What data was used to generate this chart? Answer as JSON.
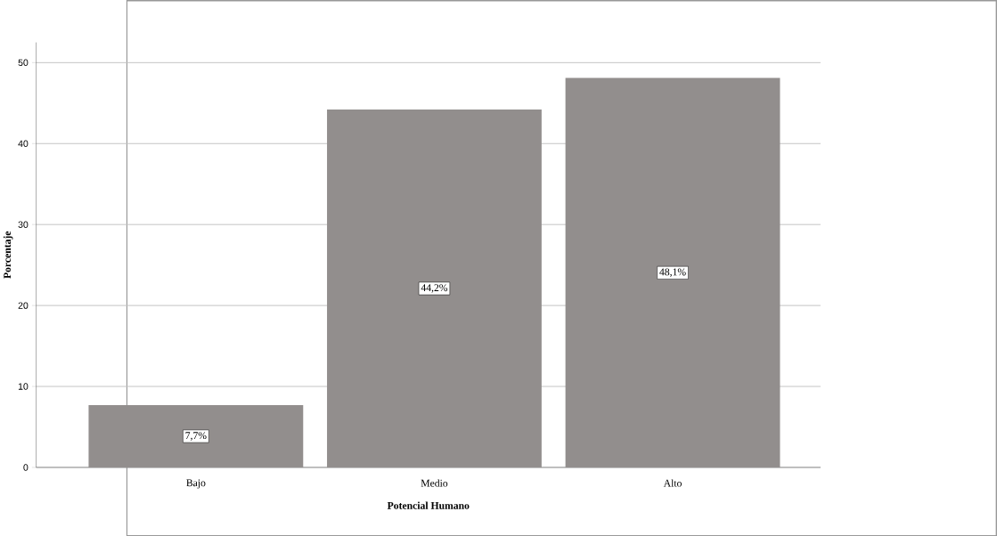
{
  "chart_data": {
    "type": "bar",
    "xlabel": "Potencial Humano",
    "ylabel": "Porcentaje",
    "categories": [
      "Bajo",
      "Medio",
      "Alto"
    ],
    "values": [
      7.7,
      44.2,
      48.1
    ],
    "value_labels": [
      "7,7%",
      "44,2%",
      "48,1%"
    ],
    "color": "#928e8d",
    "ylim": [
      0,
      52.5
    ],
    "yticks": [
      0,
      10,
      20,
      30,
      40,
      50
    ],
    "grid": "y",
    "legend": false
  }
}
